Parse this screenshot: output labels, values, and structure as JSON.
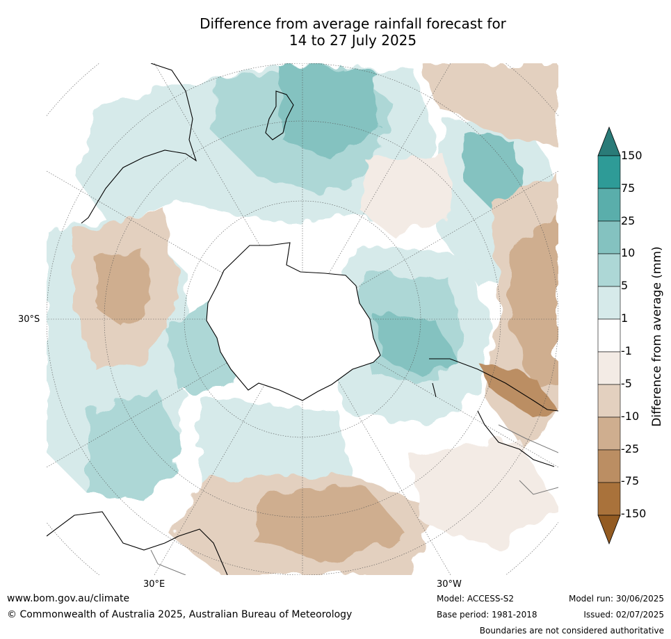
{
  "title": {
    "line1": "Difference from average rainfall forecast for",
    "line2": "14 to 27 July 2025"
  },
  "map": {
    "projection": "south-polar-stereographic",
    "latitude_label": "30°S",
    "longitude_labels": {
      "east": "30°E",
      "west": "30°W"
    }
  },
  "colorbar": {
    "title": "Difference from average (mm)",
    "tick_labels": [
      "150",
      "75",
      "25",
      "10",
      "5",
      "1",
      "-1",
      "-5",
      "-10",
      "-25",
      "-75",
      "-150"
    ],
    "colors": {
      "above_150": "#2a7b78",
      "75_150": "#2e9b97",
      "25_75": "#5aaeab",
      "10_25": "#84c2c0",
      "5_10": "#add7d6",
      "1_5": "#d6eaea",
      "neutral": "#ffffff",
      "m1_m5": "#f3ebe5",
      "m5_m10": "#e3d0bf",
      "m10_m25": "#cfae8f",
      "m25_m75": "#bb8e63",
      "m75_m150": "#a9723b",
      "below_m150": "#935b22"
    }
  },
  "footer": {
    "url": "www.bom.gov.au/climate",
    "copyright": "© Commonwealth of Australia 2025, Australian Bureau of Meteorology",
    "model": "Model: ACCESS-S2",
    "base_period": "Base period: 1981-2018",
    "model_run": "Model run: 30/06/2025",
    "issued": "Issued: 02/07/2025",
    "boundaries_note": "Boundaries are not considered authoritative"
  }
}
